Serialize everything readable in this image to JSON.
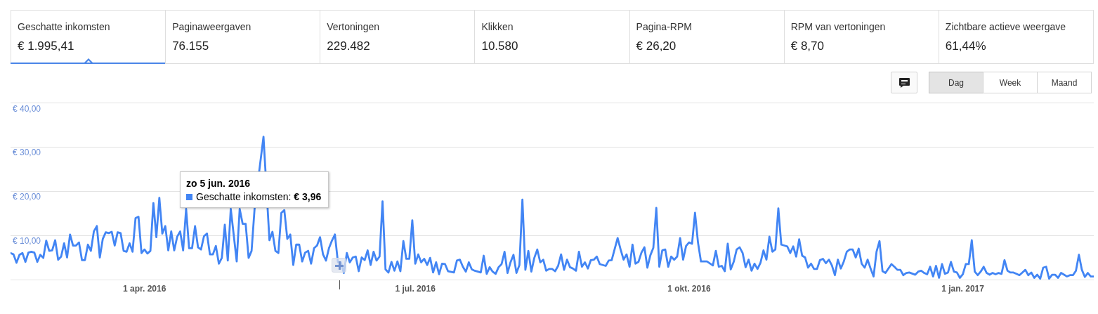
{
  "chart_data": [
    {
      "type": "other",
      "annotations": [
        "Geschatte inkomsten",
        "€ 1.995,41",
        "Paginaweergaven",
        "76.155",
        "Vertoningen",
        "229.482",
        "Klikken",
        "10.580",
        "Pagina-RPM",
        "€ 26,20",
        "RPM van vertoningen",
        "€ 8,70",
        "Zichtbare actieve weergave",
        "61,44%"
      ]
    },
    {
      "type": "line",
      "color": "#4285f4",
      "marker": "none",
      "grid": "y",
      "xlim": [
        "2016-02-16",
        "2017-02-14"
      ],
      "xticks": [
        {
          "value": "2016-04-01",
          "label": "1 apr. 2016"
        },
        {
          "value": "2016-07-01",
          "label": "1 jul. 2016"
        },
        {
          "value": "2016-10-01",
          "label": "1 okt. 2016"
        },
        {
          "value": "2017-01-01",
          "label": "1 jan. 2017"
        }
      ],
      "ylim": [
        0,
        40
      ],
      "yticks": [
        {
          "value": 0,
          "label": null
        },
        {
          "value": 10,
          "label": "€ 10,00"
        },
        {
          "value": 20,
          "label": "€ 20,00"
        },
        {
          "value": 30,
          "label": "€ 30,00"
        },
        {
          "value": 40,
          "label": "€ 40,00"
        }
      ],
      "x": [
        "2016-02-16",
        "2016-02-17",
        "2016-02-18",
        "2016-02-19",
        "2016-02-20",
        "2016-02-21",
        "2016-02-22",
        "2016-02-23",
        "2016-02-24",
        "2016-02-25",
        "2016-02-26",
        "2016-02-27",
        "2016-02-28",
        "2016-02-29",
        "2016-03-01",
        "2016-03-02",
        "2016-03-03",
        "2016-03-04",
        "2016-03-05",
        "2016-03-06",
        "2016-03-07",
        "2016-03-08",
        "2016-03-09",
        "2016-03-10",
        "2016-03-11",
        "2016-03-12",
        "2016-03-13",
        "2016-03-14",
        "2016-03-15",
        "2016-03-16",
        "2016-03-17",
        "2016-03-18",
        "2016-03-19",
        "2016-03-20",
        "2016-03-21",
        "2016-03-22",
        "2016-03-23",
        "2016-03-24",
        "2016-03-25",
        "2016-03-26",
        "2016-03-27",
        "2016-03-28",
        "2016-03-29",
        "2016-03-30",
        "2016-03-31",
        "2016-04-01",
        "2016-04-02",
        "2016-04-03",
        "2016-04-04",
        "2016-04-05",
        "2016-04-06",
        "2016-04-07",
        "2016-04-08",
        "2016-04-09",
        "2016-04-10",
        "2016-04-11",
        "2016-04-12",
        "2016-04-13",
        "2016-04-14",
        "2016-04-15",
        "2016-04-16",
        "2016-04-17",
        "2016-04-18",
        "2016-04-19",
        "2016-04-20",
        "2016-04-21",
        "2016-04-22",
        "2016-04-23",
        "2016-04-24",
        "2016-04-25",
        "2016-04-26",
        "2016-04-27",
        "2016-04-28",
        "2016-04-29",
        "2016-04-30",
        "2016-05-02",
        "2016-05-03",
        "2016-05-04",
        "2016-05-05",
        "2016-05-06",
        "2016-05-07",
        "2016-05-08",
        "2016-05-11",
        "2016-05-13",
        "2016-05-14",
        "2016-05-15",
        "2016-05-16",
        "2016-05-17",
        "2016-05-18",
        "2016-05-19",
        "2016-05-20",
        "2016-05-21",
        "2016-05-22",
        "2016-05-23",
        "2016-05-24",
        "2016-05-25",
        "2016-05-26",
        "2016-05-27",
        "2016-05-28",
        "2016-05-29",
        "2016-05-30",
        "2016-05-31",
        "2016-06-01",
        "2016-06-02",
        "2016-06-03",
        "2016-06-04",
        "2016-06-05",
        "2016-06-06",
        "2016-06-07",
        "2016-06-08",
        "2016-06-09",
        "2016-06-10",
        "2016-06-11",
        "2016-06-12",
        "2016-06-13",
        "2016-06-14",
        "2016-06-15",
        "2016-06-16",
        "2016-06-17",
        "2016-06-18",
        "2016-06-19",
        "2016-06-20",
        "2016-06-21",
        "2016-06-22",
        "2016-06-23",
        "2016-06-24",
        "2016-06-25",
        "2016-06-26",
        "2016-06-27",
        "2016-06-28",
        "2016-06-29",
        "2016-06-30",
        "2016-07-01",
        "2016-07-02",
        "2016-07-03",
        "2016-07-04",
        "2016-07-05",
        "2016-07-06",
        "2016-07-07",
        "2016-07-08",
        "2016-07-09",
        "2016-07-10",
        "2016-07-11",
        "2016-07-12",
        "2016-07-14",
        "2016-07-15",
        "2016-07-16",
        "2016-07-17",
        "2016-07-18",
        "2016-07-19",
        "2016-07-20",
        "2016-07-21",
        "2016-07-23",
        "2016-07-24",
        "2016-07-25",
        "2016-07-26",
        "2016-07-27",
        "2016-07-28",
        "2016-07-29",
        "2016-07-30",
        "2016-07-31",
        "2016-08-01",
        "2016-08-02",
        "2016-08-03",
        "2016-08-04",
        "2016-08-05",
        "2016-08-06",
        "2016-08-07",
        "2016-08-08",
        "2016-08-09",
        "2016-08-10",
        "2016-08-11",
        "2016-08-12",
        "2016-08-13",
        "2016-08-14",
        "2016-08-15",
        "2016-08-16",
        "2016-08-17",
        "2016-08-18",
        "2016-08-19",
        "2016-08-20",
        "2016-08-21",
        "2016-08-22",
        "2016-08-23",
        "2016-08-24",
        "2016-08-25",
        "2016-08-26",
        "2016-08-27",
        "2016-08-28",
        "2016-08-29",
        "2016-08-30",
        "2016-08-31",
        "2016-09-01",
        "2016-09-03",
        "2016-09-04",
        "2016-09-05",
        "2016-09-07",
        "2016-09-08",
        "2016-09-09",
        "2016-09-10",
        "2016-09-11",
        "2016-09-12",
        "2016-09-13",
        "2016-09-14",
        "2016-09-15",
        "2016-09-16",
        "2016-09-17",
        "2016-09-18",
        "2016-09-19",
        "2016-09-20",
        "2016-09-21",
        "2016-09-22",
        "2016-09-23",
        "2016-09-24",
        "2016-09-25",
        "2016-09-26",
        "2016-09-27",
        "2016-09-28",
        "2016-09-29",
        "2016-09-30",
        "2016-10-01",
        "2016-10-02",
        "2016-10-03",
        "2016-10-04",
        "2016-10-05",
        "2016-10-07",
        "2016-10-09",
        "2016-10-10",
        "2016-10-11",
        "2016-10-12",
        "2016-10-13",
        "2016-10-14",
        "2016-10-15",
        "2016-10-16",
        "2016-10-17",
        "2016-10-18",
        "2016-10-19",
        "2016-10-20",
        "2016-10-21",
        "2016-10-22",
        "2016-10-23",
        "2016-10-24",
        "2016-10-25",
        "2016-10-26",
        "2016-10-27",
        "2016-10-28",
        "2016-10-29",
        "2016-10-30",
        "2016-10-31",
        "2016-11-01",
        "2016-11-02",
        "2016-11-03",
        "2016-11-04",
        "2016-11-05",
        "2016-11-06",
        "2016-11-07",
        "2016-11-08",
        "2016-11-09",
        "2016-11-10",
        "2016-11-11",
        "2016-11-12",
        "2016-11-13",
        "2016-11-14",
        "2016-11-15",
        "2016-11-16",
        "2016-11-17",
        "2016-11-18",
        "2016-11-19",
        "2016-11-20",
        "2016-11-21",
        "2016-11-22",
        "2016-11-23",
        "2016-11-24",
        "2016-11-25",
        "2016-11-26",
        "2016-11-27",
        "2016-11-28",
        "2016-11-29",
        "2016-11-30",
        "2016-12-01",
        "2016-12-02",
        "2016-12-03",
        "2016-12-04",
        "2016-12-05",
        "2016-12-06",
        "2016-12-08",
        "2016-12-09",
        "2016-12-10",
        "2016-12-11",
        "2016-12-12",
        "2016-12-13",
        "2016-12-14",
        "2016-12-16",
        "2016-12-17",
        "2016-12-18",
        "2016-12-19",
        "2016-12-20",
        "2016-12-21",
        "2016-12-22",
        "2016-12-23",
        "2016-12-24",
        "2016-12-25",
        "2016-12-26",
        "2016-12-27",
        "2016-12-28",
        "2016-12-29",
        "2016-12-30",
        "2016-12-31",
        "2017-01-01",
        "2017-01-02",
        "2017-01-03",
        "2017-01-04",
        "2017-01-05",
        "2017-01-06",
        "2017-01-07",
        "2017-01-08",
        "2017-01-09",
        "2017-01-10",
        "2017-01-11",
        "2017-01-12",
        "2017-01-13",
        "2017-01-14",
        "2017-01-15",
        "2017-01-16",
        "2017-01-17",
        "2017-01-18",
        "2017-01-19",
        "2017-01-20",
        "2017-01-21",
        "2017-01-22",
        "2017-01-23",
        "2017-01-24",
        "2017-01-25",
        "2017-01-26",
        "2017-01-27",
        "2017-01-28",
        "2017-01-29",
        "2017-01-30",
        "2017-01-31",
        "2017-02-01",
        "2017-02-02",
        "2017-02-03",
        "2017-02-04",
        "2017-02-05",
        "2017-02-06",
        "2017-02-07",
        "2017-02-08",
        "2017-02-09",
        "2017-02-10",
        "2017-02-11",
        "2017-02-12",
        "2017-02-13",
        "2017-02-14"
      ],
      "values": [
        6.0,
        5.7,
        3.8,
        5.6,
        6.0,
        4.0,
        6.1,
        6.3,
        6.1,
        4.0,
        5.6,
        4.9,
        8.8,
        6.5,
        6.6,
        8.9,
        4.5,
        5.2,
        8.2,
        5.0,
        10.2,
        7.7,
        7.7,
        8.4,
        4.4,
        4.4,
        7.9,
        6.5,
        10.9,
        12.1,
        5.0,
        9.2,
        10.7,
        10.5,
        10.8,
        7.7,
        10.7,
        10.5,
        6.5,
        6.3,
        8.2,
        6.3,
        13.9,
        14.2,
        6.0,
        6.8,
        5.9,
        6.5,
        17.3,
        9.6,
        18.5,
        10.4,
        12.1,
        6.6,
        10.9,
        6.6,
        9.7,
        10.9,
        6.6,
        16.0,
        7.1,
        7.1,
        12.1,
        7.3,
        6.8,
        9.8,
        10.4,
        5.7,
        5.7,
        7.6,
        3.6,
        4.9,
        12.4,
        4.3,
        16.0,
        4.1,
        16.0,
        12.6,
        12.6,
        4.9,
        6.5,
        16.0,
        32.3,
        8.9,
        10.8,
        6.5,
        6.0,
        15.1,
        15.7,
        9.2,
        10.2,
        3.3,
        7.9,
        7.9,
        4.1,
        6.1,
        6.5,
        3.6,
        7.1,
        7.7,
        9.6,
        5.7,
        4.3,
        7.1,
        8.8,
        10.2,
        3.96,
        3.9,
        1.5,
        6.0,
        3.9,
        5.0,
        5.2,
        1.9,
        5.0,
        4.4,
        6.6,
        3.3,
        6.3,
        4.3,
        5.2,
        17.7,
        2.3,
        1.6,
        4.0,
        2.0,
        4.1,
        1.9,
        8.7,
        4.7,
        4.7,
        13.4,
        3.6,
        5.7,
        3.9,
        4.7,
        3.3,
        4.9,
        1.6,
        3.9,
        1.2,
        3.6,
        3.5,
        1.9,
        1.6,
        4.3,
        4.5,
        2.9,
        1.8,
        3.9,
        2.3,
        2.0,
        1.6,
        5.4,
        1.3,
        2.8,
        1.8,
        1.3,
        2.8,
        3.5,
        6.3,
        1.5,
        3.9,
        5.6,
        1.5,
        3.3,
        18.1,
        2.2,
        6.5,
        1.8,
        4.9,
        6.8,
        3.9,
        4.5,
        2.0,
        2.4,
        2.4,
        1.9,
        3.1,
        5.7,
        2.2,
        4.5,
        2.8,
        2.5,
        2.0,
        6.3,
        2.9,
        3.9,
        2.5,
        4.4,
        4.5,
        5.2,
        3.5,
        3.1,
        4.3,
        4.4,
        9.4,
        6.8,
        4.5,
        5.7,
        2.9,
        7.9,
        3.6,
        4.0,
        6.1,
        7.3,
        2.7,
        5.5,
        7.2,
        16.2,
        2.9,
        6.6,
        6.8,
        2.9,
        5.2,
        4.5,
        5.2,
        9.4,
        4.5,
        7.6,
        8.4,
        8.1,
        15.1,
        8.4,
        4.1,
        4.1,
        3.2,
        6.5,
        2.9,
        3.1,
        1.9,
        8.1,
        2.3,
        4.0,
        6.8,
        7.3,
        6.0,
        2.8,
        4.5,
        2.0,
        3.6,
        2.4,
        3.8,
        6.6,
        4.5,
        9.7,
        6.3,
        6.8,
        16.1,
        7.9,
        7.7,
        7.5,
        6.0,
        7.5,
        5.2,
        9.1,
        5.4,
        5.0,
        2.7,
        3.6,
        2.4,
        2.4,
        4.4,
        4.7,
        3.7,
        4.5,
        3.2,
        1.0,
        4.5,
        2.5,
        4.1,
        6.3,
        6.8,
        6.8,
        5.0,
        7.0,
        3.6,
        2.7,
        4.5,
        2.5,
        0.7,
        6.3,
        8.7,
        1.9,
        1.5,
        3.5,
        2.9,
        2.2,
        2.2,
        1.0,
        1.5,
        1.6,
        1.1,
        1.8,
        2.0,
        1.5,
        1.2,
        2.9,
        0.7,
        3.1,
        0.4,
        3.5,
        1.3,
        1.6,
        4.0,
        1.8,
        1.6,
        0.4,
        1.2,
        3.5,
        3.5,
        8.9,
        1.8,
        1.0,
        1.8,
        2.9,
        1.5,
        1.1,
        1.5,
        1.2,
        1.5,
        1.3,
        4.4,
        2.0,
        1.6,
        1.6,
        1.3,
        1.0,
        1.6,
        2.2,
        1.0,
        1.6,
        0.4,
        1.1,
        0.2,
        2.7,
        2.9,
        0.2,
        1.1,
        1.1,
        0.4,
        1.5,
        1.1,
        0.7,
        1.0,
        1.0,
        2.0,
        5.6,
        2.2,
        0.6,
        1.5,
        0.7,
        0.7
      ],
      "annotations": [
        "zo 5 jun. 2016\nGeschatte inkomsten: € 3,96",
        "Dag",
        "Week",
        "Maand"
      ]
    }
  ]
}
